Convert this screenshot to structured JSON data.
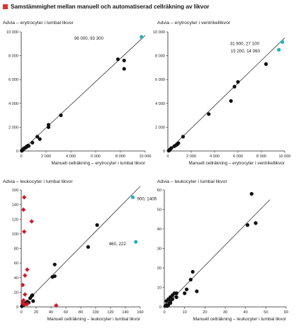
{
  "header": {
    "title": "Samstämmighet mellan manuell och automatiserad cellräkning av likvor"
  },
  "colors": {
    "black": "#111111",
    "teal": "#1bb3c2",
    "red": "#d11a2a",
    "marker": "#e03030",
    "line": "#333333"
  },
  "chart_data": [
    {
      "type": "scatter",
      "title": "Advia – erytrocyter i lumbal likvor",
      "xlabel": "Manuell cellräkning – erytrocyter i lumbal likvor",
      "ylabel": "",
      "xlim": [
        0,
        10000
      ],
      "ylim": [
        0,
        10000
      ],
      "xticks": [
        0,
        2000,
        4000,
        6000,
        8000,
        10000
      ],
      "yticks": [
        0,
        2000,
        4000,
        6000,
        8000,
        10000
      ],
      "xtick_labels": [
        "0",
        "2 000",
        "4 000",
        "6 000",
        "8 000",
        "10 000"
      ],
      "ytick_labels": [
        "0",
        "2 000",
        "4 000",
        "6 000",
        "8 000",
        "10 000"
      ],
      "grid": false,
      "regression": {
        "x": [
          0,
          10000
        ],
        "y": [
          0,
          9700
        ]
      },
      "series": [
        {
          "color": "#111111",
          "marker": "circle",
          "points": [
            [
              40,
              20
            ],
            [
              60,
              50
            ],
            [
              90,
              60
            ],
            [
              120,
              100
            ],
            [
              150,
              150
            ],
            [
              200,
              180
            ],
            [
              250,
              230
            ],
            [
              320,
              280
            ],
            [
              400,
              300
            ],
            [
              450,
              390
            ],
            [
              550,
              450
            ],
            [
              600,
              420
            ],
            [
              900,
              700
            ],
            [
              1300,
              1200
            ],
            [
              1500,
              1000
            ],
            [
              2200,
              2000
            ],
            [
              2200,
              2200
            ],
            [
              3200,
              3000
            ],
            [
              7800,
              7700
            ],
            [
              8300,
              7600
            ],
            [
              8300,
              6900
            ]
          ]
        },
        {
          "color": "#1bb3c2",
          "marker": "circle",
          "points": [
            [
              9700,
              9580
            ]
          ]
        }
      ],
      "annotations": [
        {
          "text": "96 000, 93 300"
        }
      ]
    },
    {
      "type": "scatter",
      "title": "Advia – erytrocyter i ventrikellikvor",
      "xlabel": "Manuell cellräkning – erytrocyter i ventrikellikvor",
      "ylabel": "",
      "xlim": [
        0,
        10000
      ],
      "ylim": [
        0,
        10000
      ],
      "xticks": [
        0,
        2000,
        4000,
        6000,
        8000,
        10000
      ],
      "yticks": [
        0,
        2000,
        4000,
        6000,
        8000,
        10000
      ],
      "xtick_labels": [
        "0",
        "2 000",
        "4 000",
        "6 000",
        "8 000",
        "10 000"
      ],
      "ytick_labels": [
        "0",
        "2 000",
        "4 000",
        "6 000",
        "8 000",
        "10 000"
      ],
      "grid": false,
      "regression": {
        "x": [
          0,
          10000
        ],
        "y": [
          0,
          9500
        ]
      },
      "series": [
        {
          "color": "#111111",
          "marker": "circle",
          "points": [
            [
              80,
              30
            ],
            [
              150,
              80
            ],
            [
              200,
              140
            ],
            [
              300,
              250
            ],
            [
              550,
              400
            ],
            [
              700,
              480
            ],
            [
              800,
              550
            ],
            [
              900,
              650
            ],
            [
              1300,
              1200
            ],
            [
              3500,
              3100
            ],
            [
              5400,
              4200
            ],
            [
              5700,
              5400
            ],
            [
              6000,
              5800
            ],
            [
              8400,
              7300
            ]
          ]
        },
        {
          "color": "#1bb3c2",
          "marker": "circle",
          "points": [
            [
              9800,
              9150
            ],
            [
              9500,
              8500
            ]
          ]
        }
      ],
      "annotations": [
        {
          "text": "31 900, 27 100"
        },
        {
          "text": "15 200, 14 060"
        }
      ]
    },
    {
      "type": "scatter",
      "title": "Advia – leukocyter i lumbal likvor",
      "xlabel": "Manuell cellräkning – leukocyter i lumbal likvor",
      "ylabel": "",
      "xlim": [
        0,
        160
      ],
      "ylim": [
        0,
        160
      ],
      "xticks": [
        0,
        20,
        40,
        60,
        80,
        100,
        120,
        140,
        160
      ],
      "yticks": [
        0,
        20,
        40,
        60,
        80,
        100,
        120,
        140,
        160
      ],
      "xtick_labels": [
        "0",
        "20",
        "40",
        "60",
        "80",
        "100",
        "120",
        "140",
        "160"
      ],
      "ytick_labels": [
        "0",
        "20",
        "40",
        "60",
        "80",
        "100",
        "120",
        "140",
        "160"
      ],
      "grid": false,
      "regression": {
        "x": [
          0,
          160
        ],
        "y": [
          0,
          165
        ]
      },
      "series": [
        {
          "color": "#111111",
          "marker": "circle",
          "points": [
            [
              1,
              1
            ],
            [
              2,
              2
            ],
            [
              3,
              2
            ],
            [
              4,
              3
            ],
            [
              5,
              5
            ],
            [
              6,
              4
            ],
            [
              8,
              7
            ],
            [
              10,
              6
            ],
            [
              12,
              12
            ],
            [
              14,
              15
            ],
            [
              15,
              16
            ],
            [
              16,
              8
            ],
            [
              42,
              41
            ],
            [
              45,
              42
            ],
            [
              45,
              58
            ],
            [
              90,
              82
            ],
            [
              102,
              112
            ]
          ]
        },
        {
          "color": "#1bb3c2",
          "marker": "circle",
          "points": [
            [
              150,
              150
            ],
            [
              154,
              89
            ]
          ]
        },
        {
          "color": "#d11a2a",
          "marker": "diamond",
          "points": [
            [
              4,
              150
            ],
            [
              3,
              133
            ],
            [
              14,
              117
            ],
            [
              4,
              103
            ],
            [
              8,
              51
            ],
            [
              5,
              43
            ],
            [
              2,
              30
            ],
            [
              5,
              17
            ],
            [
              3,
              9
            ],
            [
              2,
              6
            ],
            [
              4,
              3
            ],
            [
              8,
              4
            ],
            [
              47,
              2
            ]
          ]
        }
      ],
      "annotations": [
        {
          "text": "900, 1406"
        },
        {
          "text": "460, 222"
        }
      ]
    },
    {
      "type": "scatter",
      "title": "Advia – leukocyter i lumbal likvor",
      "xlabel": "Manuell cellräkning – leukocyter i lumbal likvor",
      "ylabel": "",
      "xlim": [
        0,
        60
      ],
      "ylim": [
        0,
        60
      ],
      "xticks": [
        0,
        10,
        20,
        30,
        40,
        50,
        60
      ],
      "yticks": [
        0,
        10,
        20,
        30,
        40,
        50,
        60
      ],
      "xtick_labels": [
        "0",
        "10",
        "20",
        "30",
        "40",
        "50",
        "60"
      ],
      "ytick_labels": [
        "0",
        "10",
        "20",
        "30",
        "40",
        "50",
        "60"
      ],
      "grid": false,
      "regression": {
        "x": [
          0,
          52
        ],
        "y": [
          0,
          55
        ]
      },
      "series": [
        {
          "color": "#111111",
          "marker": "circle",
          "points": [
            [
              0.5,
              0.5
            ],
            [
              1,
              1
            ],
            [
              1.5,
              0.5
            ],
            [
              2,
              1
            ],
            [
              2.5,
              2
            ],
            [
              3,
              2
            ],
            [
              1,
              3
            ],
            [
              2,
              4
            ],
            [
              3,
              5
            ],
            [
              4,
              4
            ],
            [
              4,
              6
            ],
            [
              5,
              7
            ],
            [
              3,
              3
            ],
            [
              6,
              7
            ],
            [
              6,
              5
            ],
            [
              10,
              7
            ],
            [
              11,
              9
            ],
            [
              13,
              14
            ],
            [
              14,
              18
            ],
            [
              16,
              8
            ],
            [
              41,
              42
            ],
            [
              43,
              58
            ],
            [
              45,
              43
            ]
          ]
        }
      ],
      "annotations": []
    }
  ]
}
